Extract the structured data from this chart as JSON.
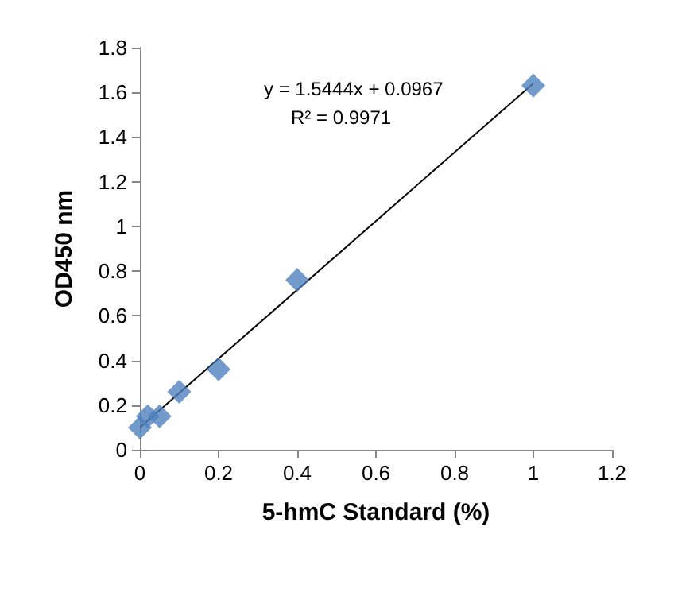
{
  "chart_data": {
    "type": "scatter",
    "xlabel": "5-hmC Standard (%)",
    "ylabel": "OD450 nm",
    "xlim": [
      0,
      1.2
    ],
    "xticks": [
      0,
      0.2,
      0.4,
      0.6,
      0.8,
      1,
      1.2
    ],
    "ylim": [
      0,
      1.8
    ],
    "yticks": [
      0,
      0.2,
      0.4,
      0.6,
      0.8,
      1,
      1.2,
      1.4,
      1.6,
      1.8
    ],
    "grid": false,
    "marker": "diamond",
    "annotations": [
      "y = 1.5444x + 0.0967",
      "R² = 0.9971"
    ],
    "series": [
      {
        "color": "#4f81bd",
        "x": [
          0,
          0.02,
          0.05,
          0.1,
          0.2,
          0.4,
          1
        ],
        "values": [
          0.1,
          0.15,
          0.15,
          0.26,
          0.36,
          0.76,
          1.63
        ]
      },
      {
        "type": "line",
        "color": "#000000",
        "marker": "none",
        "line_style": "solid",
        "x": [
          0,
          1
        ],
        "values": [
          0.1,
          1.64
        ]
      }
    ]
  }
}
